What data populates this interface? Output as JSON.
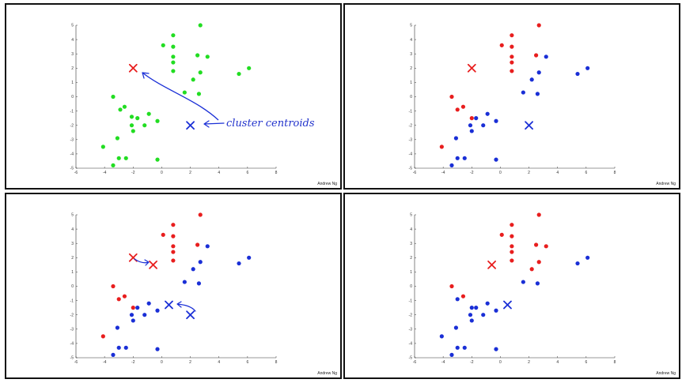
{
  "watermark": "Andrew Ng",
  "colors": {
    "cluster_a": "#e81e1e",
    "cluster_b": "#1a2fd6",
    "unassigned": "#22dd22"
  },
  "chart_data": [
    {
      "type": "scatter",
      "panel": 1,
      "xlim": [
        -6,
        8
      ],
      "ylim": [
        -5,
        5
      ],
      "xticks": [
        -6,
        -4,
        -2,
        0,
        2,
        4,
        6,
        8
      ],
      "yticks": [
        5,
        4,
        3,
        2,
        1,
        0,
        -1,
        -2,
        -3,
        -4,
        -5
      ],
      "series": [
        {
          "color": "unassigned",
          "points": [
            [
              -4.1,
              -3.5
            ],
            [
              -3.4,
              -4.8
            ],
            [
              -3.0,
              -4.3
            ],
            [
              -2.5,
              -4.3
            ],
            [
              -0.3,
              -4.4
            ],
            [
              -3.1,
              -2.9
            ],
            [
              -2.0,
              -2.4
            ],
            [
              -2.1,
              -2.0
            ],
            [
              -1.7,
              -1.5
            ],
            [
              -1.2,
              -2.0
            ],
            [
              -0.9,
              -1.2
            ],
            [
              -0.3,
              -1.7
            ],
            [
              -2.1,
              -1.4
            ],
            [
              -2.9,
              -0.9
            ],
            [
              -2.6,
              -0.7
            ],
            [
              -3.4,
              0.0
            ],
            [
              0.1,
              3.6
            ],
            [
              0.8,
              4.3
            ],
            [
              0.8,
              3.5
            ],
            [
              0.8,
              2.8
            ],
            [
              0.8,
              2.4
            ],
            [
              0.8,
              1.8
            ],
            [
              2.7,
              5.0
            ],
            [
              2.5,
              2.9
            ],
            [
              3.2,
              2.8
            ],
            [
              2.7,
              1.7
            ],
            [
              2.2,
              1.2
            ],
            [
              1.6,
              0.3
            ],
            [
              2.6,
              0.2
            ],
            [
              5.4,
              1.6
            ],
            [
              6.1,
              2.0
            ]
          ]
        }
      ],
      "centroids": [
        {
          "color": "cluster_a",
          "x": -2.0,
          "y": 2.0
        },
        {
          "color": "cluster_b",
          "x": 2.0,
          "y": -2.0
        }
      ],
      "annotation": "cluster centroids"
    },
    {
      "type": "scatter",
      "panel": 2,
      "xlim": [
        -6,
        8
      ],
      "ylim": [
        -5,
        5
      ],
      "xticks": [
        -6,
        -4,
        -2,
        0,
        2,
        4,
        6,
        8
      ],
      "yticks": [
        5,
        4,
        3,
        2,
        1,
        0,
        -1,
        -2,
        -3,
        -4,
        -5
      ],
      "series": [
        {
          "color": "cluster_a",
          "points": [
            [
              -4.1,
              -3.5
            ],
            [
              -3.4,
              0.0
            ],
            [
              -3.0,
              -0.9
            ],
            [
              -2.6,
              -0.7
            ],
            [
              -2.0,
              -1.5
            ],
            [
              0.1,
              3.6
            ],
            [
              0.8,
              4.3
            ],
            [
              0.8,
              3.5
            ],
            [
              0.8,
              2.8
            ],
            [
              0.8,
              2.4
            ],
            [
              0.8,
              1.8
            ],
            [
              2.7,
              5.0
            ],
            [
              2.5,
              2.9
            ]
          ]
        },
        {
          "color": "cluster_b",
          "points": [
            [
              -3.4,
              -4.8
            ],
            [
              -3.0,
              -4.3
            ],
            [
              -2.5,
              -4.3
            ],
            [
              -0.3,
              -4.4
            ],
            [
              -3.1,
              -2.9
            ],
            [
              -2.0,
              -2.4
            ],
            [
              -2.1,
              -2.0
            ],
            [
              -1.7,
              -1.5
            ],
            [
              -1.2,
              -2.0
            ],
            [
              -0.9,
              -1.2
            ],
            [
              -0.3,
              -1.7
            ],
            [
              3.2,
              2.8
            ],
            [
              2.7,
              1.7
            ],
            [
              2.2,
              1.2
            ],
            [
              1.6,
              0.3
            ],
            [
              2.6,
              0.2
            ],
            [
              5.4,
              1.6
            ],
            [
              6.1,
              2.0
            ]
          ]
        }
      ],
      "centroids": [
        {
          "color": "cluster_a",
          "x": -2.0,
          "y": 2.0
        },
        {
          "color": "cluster_b",
          "x": 2.0,
          "y": -2.0
        }
      ]
    },
    {
      "type": "scatter",
      "panel": 3,
      "xlim": [
        -6,
        8
      ],
      "ylim": [
        -5,
        5
      ],
      "xticks": [
        -6,
        -4,
        -2,
        0,
        2,
        4,
        6,
        8
      ],
      "yticks": [
        5,
        4,
        3,
        2,
        1,
        0,
        -1,
        -2,
        -3,
        -4,
        -5
      ],
      "series": [
        {
          "color": "cluster_a",
          "points": [
            [
              -4.1,
              -3.5
            ],
            [
              -3.4,
              0.0
            ],
            [
              -3.0,
              -0.9
            ],
            [
              -2.6,
              -0.7
            ],
            [
              -2.0,
              -1.5
            ],
            [
              0.1,
              3.6
            ],
            [
              0.8,
              4.3
            ],
            [
              0.8,
              3.5
            ],
            [
              0.8,
              2.8
            ],
            [
              0.8,
              2.4
            ],
            [
              0.8,
              1.8
            ],
            [
              2.7,
              5.0
            ],
            [
              2.5,
              2.9
            ]
          ]
        },
        {
          "color": "cluster_b",
          "points": [
            [
              -3.4,
              -4.8
            ],
            [
              -3.0,
              -4.3
            ],
            [
              -2.5,
              -4.3
            ],
            [
              -0.3,
              -4.4
            ],
            [
              -3.1,
              -2.9
            ],
            [
              -2.0,
              -2.4
            ],
            [
              -2.1,
              -2.0
            ],
            [
              -1.7,
              -1.5
            ],
            [
              -1.2,
              -2.0
            ],
            [
              -0.9,
              -1.2
            ],
            [
              -0.3,
              -1.7
            ],
            [
              3.2,
              2.8
            ],
            [
              2.7,
              1.7
            ],
            [
              2.2,
              1.2
            ],
            [
              1.6,
              0.3
            ],
            [
              2.6,
              0.2
            ],
            [
              5.4,
              1.6
            ],
            [
              6.1,
              2.0
            ]
          ]
        }
      ],
      "centroids": [
        {
          "color": "cluster_a",
          "x": -2.0,
          "y": 2.0
        },
        {
          "color": "cluster_a",
          "x": -0.6,
          "y": 1.5
        },
        {
          "color": "cluster_b",
          "x": 0.5,
          "y": -1.3
        },
        {
          "color": "cluster_b",
          "x": 2.0,
          "y": -2.0
        }
      ]
    },
    {
      "type": "scatter",
      "panel": 4,
      "xlim": [
        -6,
        8
      ],
      "ylim": [
        -5,
        5
      ],
      "xticks": [
        -6,
        -4,
        -2,
        0,
        2,
        4,
        6,
        8
      ],
      "yticks": [
        5,
        4,
        3,
        2,
        1,
        0,
        -1,
        -2,
        -3,
        -4,
        -5
      ],
      "series": [
        {
          "color": "cluster_a",
          "points": [
            [
              -3.4,
              0.0
            ],
            [
              -2.6,
              -0.7
            ],
            [
              0.1,
              3.6
            ],
            [
              0.8,
              4.3
            ],
            [
              0.8,
              3.5
            ],
            [
              0.8,
              2.8
            ],
            [
              0.8,
              2.4
            ],
            [
              0.8,
              1.8
            ],
            [
              2.7,
              5.0
            ],
            [
              2.5,
              2.9
            ],
            [
              3.2,
              2.8
            ],
            [
              2.7,
              1.7
            ],
            [
              2.2,
              1.2
            ]
          ]
        },
        {
          "color": "cluster_b",
          "points": [
            [
              -4.1,
              -3.5
            ],
            [
              -3.0,
              -0.9
            ],
            [
              -2.0,
              -1.5
            ],
            [
              -3.4,
              -4.8
            ],
            [
              -3.0,
              -4.3
            ],
            [
              -2.5,
              -4.3
            ],
            [
              -0.3,
              -4.4
            ],
            [
              -3.1,
              -2.9
            ],
            [
              -2.0,
              -2.4
            ],
            [
              -2.1,
              -2.0
            ],
            [
              -1.7,
              -1.5
            ],
            [
              -1.2,
              -2.0
            ],
            [
              -0.9,
              -1.2
            ],
            [
              -0.3,
              -1.7
            ],
            [
              1.6,
              0.3
            ],
            [
              2.6,
              0.2
            ],
            [
              5.4,
              1.6
            ],
            [
              6.1,
              2.0
            ]
          ]
        }
      ],
      "centroids": [
        {
          "color": "cluster_a",
          "x": -0.6,
          "y": 1.5
        },
        {
          "color": "cluster_b",
          "x": 0.5,
          "y": -1.3
        }
      ]
    }
  ]
}
